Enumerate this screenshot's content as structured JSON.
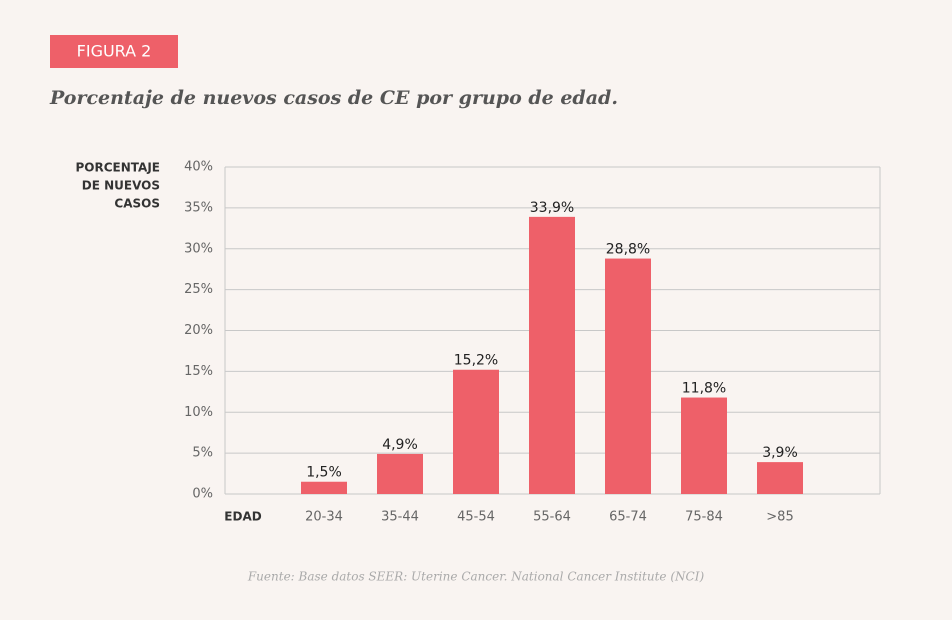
{
  "chart_data": {
    "type": "bar",
    "badge": "FIGURA 2",
    "title": "Porcentaje de nuevos casos de CE por grupo de edad.",
    "ylabel": [
      "PORCENTAJE",
      "DE NUEVOS",
      "CASOS"
    ],
    "xlabel": "EDAD",
    "categories": [
      "20-34",
      "35-44",
      "45-54",
      "55-64",
      "65-74",
      "75-84",
      ">85"
    ],
    "values": [
      1.5,
      4.9,
      15.2,
      33.9,
      28.8,
      11.8,
      3.9
    ],
    "value_labels": [
      "1,5%",
      "4,9%",
      "15,2%",
      "33,9%",
      "28,8%",
      "11,8%",
      "3,9%"
    ],
    "color": "#ee6069",
    "ylim": [
      0,
      40
    ],
    "yticks": [
      {
        "value": 0,
        "label": "0%"
      },
      {
        "value": 5,
        "label": "5%"
      },
      {
        "value": 10,
        "label": "10%"
      },
      {
        "value": 15,
        "label": "15%"
      },
      {
        "value": 20,
        "label": "20%"
      },
      {
        "value": 25,
        "label": "25%"
      },
      {
        "value": 30,
        "label": "30%"
      },
      {
        "value": 35,
        "label": "35%"
      },
      {
        "value": 40,
        "label": "40%"
      }
    ],
    "grid": true,
    "source": "Fuente: Base datos SEER: Uterine Cancer. National Cancer Institute (NCI)"
  }
}
